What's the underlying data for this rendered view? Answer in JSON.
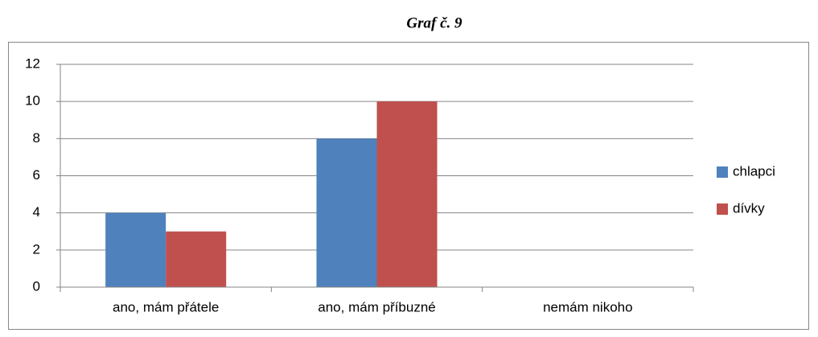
{
  "chart_data": {
    "type": "bar",
    "title": "Graf č. 9",
    "categories": [
      "ano, mám přátele",
      "ano, mám příbuzné",
      "nemám nikoho"
    ],
    "series": [
      {
        "name": "chlapci",
        "color": "#4f81bd",
        "values": [
          4,
          8,
          0
        ]
      },
      {
        "name": "dívky",
        "color": "#c0504d",
        "values": [
          3,
          10,
          0
        ]
      }
    ],
    "ylim": [
      0,
      12
    ],
    "yticks": [
      0,
      2,
      4,
      6,
      8,
      10,
      12
    ],
    "grid": true,
    "legend": "right"
  }
}
